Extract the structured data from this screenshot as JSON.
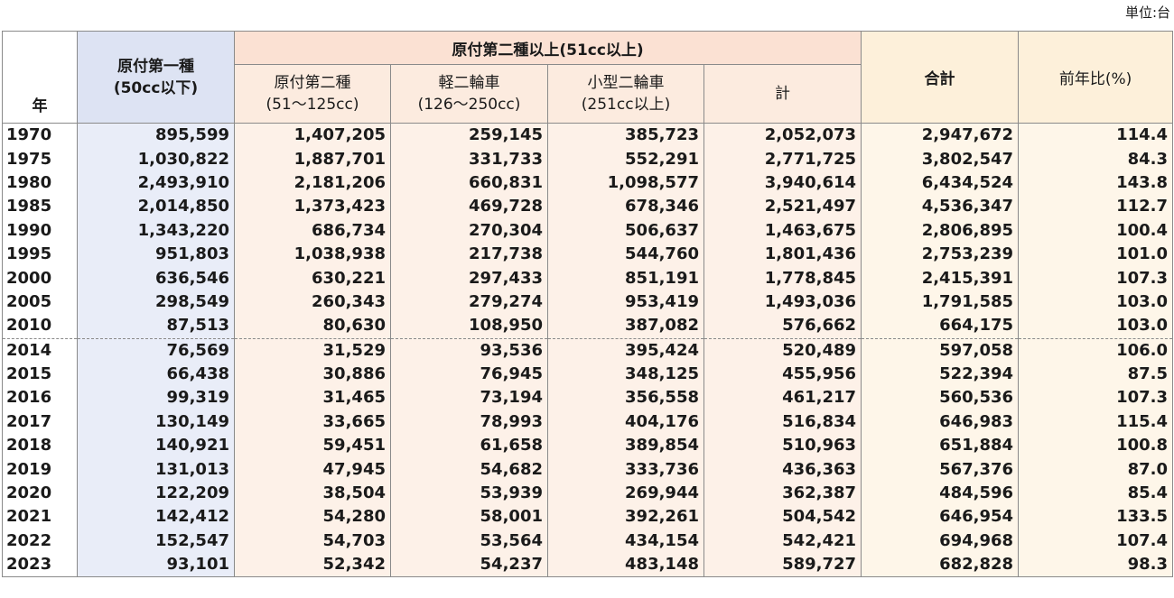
{
  "unit_label": "単位:台",
  "header": {
    "year": "年",
    "gen1_line1": "原付第一種",
    "gen1_line2": "(50cc以下)",
    "over_group": "原付第二種以上(51cc以上)",
    "gen2_line1": "原付第二種",
    "gen2_line2": "(51〜125cc)",
    "kei_line1": "軽二輪車",
    "kei_line2": "(126〜250cc)",
    "kogata_line1": "小型二輪車",
    "kogata_line2": "(251cc以上)",
    "subtotal": "計",
    "total": "合計",
    "ratio": "前年比(%)"
  },
  "rows": [
    {
      "year": "1970",
      "gen1": "895,599",
      "gen2": "1,407,205",
      "kei": "259,145",
      "kogata": "385,723",
      "subtotal": "2,052,073",
      "total": "2,947,672",
      "ratio": "114.4"
    },
    {
      "year": "1975",
      "gen1": "1,030,822",
      "gen2": "1,887,701",
      "kei": "331,733",
      "kogata": "552,291",
      "subtotal": "2,771,725",
      "total": "3,802,547",
      "ratio": "84.3"
    },
    {
      "year": "1980",
      "gen1": "2,493,910",
      "gen2": "2,181,206",
      "kei": "660,831",
      "kogata": "1,098,577",
      "subtotal": "3,940,614",
      "total": "6,434,524",
      "ratio": "143.8"
    },
    {
      "year": "1985",
      "gen1": "2,014,850",
      "gen2": "1,373,423",
      "kei": "469,728",
      "kogata": "678,346",
      "subtotal": "2,521,497",
      "total": "4,536,347",
      "ratio": "112.7"
    },
    {
      "year": "1990",
      "gen1": "1,343,220",
      "gen2": "686,734",
      "kei": "270,304",
      "kogata": "506,637",
      "subtotal": "1,463,675",
      "total": "2,806,895",
      "ratio": "100.4"
    },
    {
      "year": "1995",
      "gen1": "951,803",
      "gen2": "1,038,938",
      "kei": "217,738",
      "kogata": "544,760",
      "subtotal": "1,801,436",
      "total": "2,753,239",
      "ratio": "101.0"
    },
    {
      "year": "2000",
      "gen1": "636,546",
      "gen2": "630,221",
      "kei": "297,433",
      "kogata": "851,191",
      "subtotal": "1,778,845",
      "total": "2,415,391",
      "ratio": "107.3"
    },
    {
      "year": "2005",
      "gen1": "298,549",
      "gen2": "260,343",
      "kei": "279,274",
      "kogata": "953,419",
      "subtotal": "1,493,036",
      "total": "1,791,585",
      "ratio": "103.0"
    },
    {
      "year": "2010",
      "gen1": "87,513",
      "gen2": "80,630",
      "kei": "108,950",
      "kogata": "387,082",
      "subtotal": "576,662",
      "total": "664,175",
      "ratio": "103.0"
    },
    {
      "year": "2014",
      "gen1": "76,569",
      "gen2": "31,529",
      "kei": "93,536",
      "kogata": "395,424",
      "subtotal": "520,489",
      "total": "597,058",
      "ratio": "106.0"
    },
    {
      "year": "2015",
      "gen1": "66,438",
      "gen2": "30,886",
      "kei": "76,945",
      "kogata": "348,125",
      "subtotal": "455,956",
      "total": "522,394",
      "ratio": "87.5"
    },
    {
      "year": "2016",
      "gen1": "99,319",
      "gen2": "31,465",
      "kei": "73,194",
      "kogata": "356,558",
      "subtotal": "461,217",
      "total": "560,536",
      "ratio": "107.3"
    },
    {
      "year": "2017",
      "gen1": "130,149",
      "gen2": "33,665",
      "kei": "78,993",
      "kogata": "404,176",
      "subtotal": "516,834",
      "total": "646,983",
      "ratio": "115.4"
    },
    {
      "year": "2018",
      "gen1": "140,921",
      "gen2": "59,451",
      "kei": "61,658",
      "kogata": "389,854",
      "subtotal": "510,963",
      "total": "651,884",
      "ratio": "100.8"
    },
    {
      "year": "2019",
      "gen1": "131,013",
      "gen2": "47,945",
      "kei": "54,682",
      "kogata": "333,736",
      "subtotal": "436,363",
      "total": "567,376",
      "ratio": "87.0"
    },
    {
      "year": "2020",
      "gen1": "122,209",
      "gen2": "38,504",
      "kei": "53,939",
      "kogata": "269,944",
      "subtotal": "362,387",
      "total": "484,596",
      "ratio": "85.4"
    },
    {
      "year": "2021",
      "gen1": "142,412",
      "gen2": "54,280",
      "kei": "58,001",
      "kogata": "392,261",
      "subtotal": "504,542",
      "total": "646,954",
      "ratio": "133.5"
    },
    {
      "year": "2022",
      "gen1": "152,547",
      "gen2": "54,703",
      "kei": "53,564",
      "kogata": "434,154",
      "subtotal": "542,421",
      "total": "694,968",
      "ratio": "107.4"
    },
    {
      "year": "2023",
      "gen1": "93,101",
      "gen2": "52,342",
      "kei": "54,237",
      "kogata": "483,148",
      "subtotal": "589,727",
      "total": "682,828",
      "ratio": "98.3"
    }
  ]
}
